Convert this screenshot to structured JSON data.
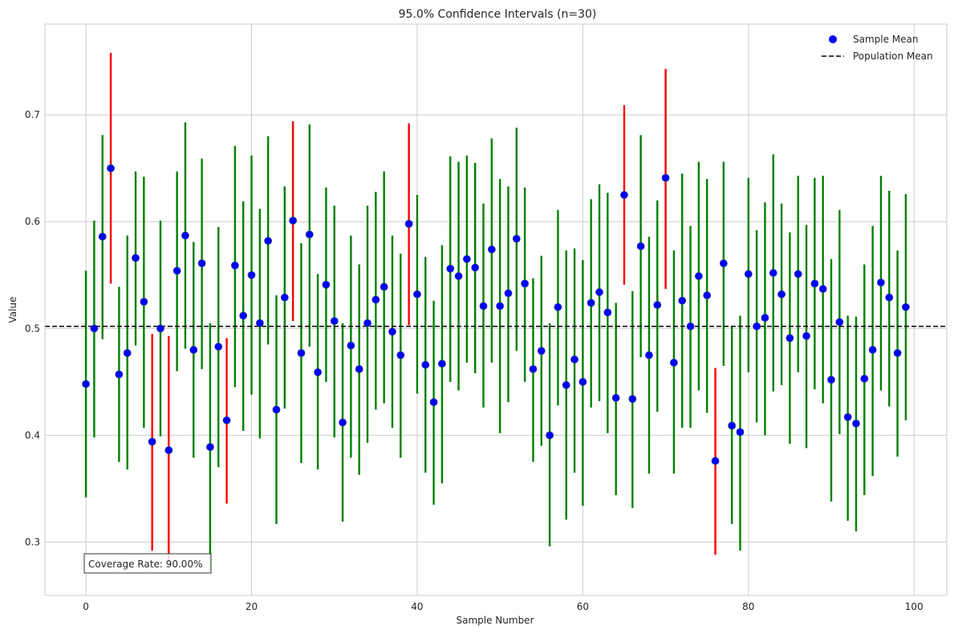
{
  "chart_data": {
    "type": "scatter",
    "title": "95.0% Confidence Intervals (n=30)",
    "xlabel": "Sample Number",
    "ylabel": "Value",
    "xlim": [
      -4.95,
      103.95
    ],
    "ylim": [
      0.25,
      0.785
    ],
    "xticks": [
      0,
      20,
      40,
      60,
      80,
      100
    ],
    "yticks": [
      0.3,
      0.4,
      0.5,
      0.6,
      0.7
    ],
    "grid": true,
    "legend": {
      "placement": "top-right",
      "entries": [
        {
          "label": "Sample Mean",
          "kind": "marker",
          "color": "#0000ff"
        },
        {
          "label": "Population Mean",
          "kind": "dashed-line",
          "color": "#000000"
        }
      ]
    },
    "population_mean": 0.502,
    "annotation": "Coverage Rate: 90.00%",
    "colors": {
      "covered": "#008000",
      "missed": "#ff0000",
      "marker": "#0000ff",
      "marker_edge": "#1f3f8f"
    },
    "means": [
      0.448,
      0.5,
      0.586,
      0.65,
      0.457,
      0.477,
      0.566,
      0.525,
      0.394,
      0.5,
      0.386,
      0.554,
      0.587,
      0.48,
      0.561,
      0.389,
      0.483,
      0.414,
      0.559,
      0.512,
      0.55,
      0.505,
      0.582,
      0.424,
      0.529,
      0.601,
      0.477,
      0.588,
      0.459,
      0.541,
      0.507,
      0.412,
      0.484,
      0.462,
      0.505,
      0.527,
      0.539,
      0.497,
      0.475,
      0.598,
      0.532,
      0.466,
      0.431,
      0.467,
      0.556,
      0.549,
      0.565,
      0.557,
      0.521,
      0.574,
      0.521,
      0.533,
      0.584,
      0.542,
      0.462,
      0.479,
      0.4,
      0.52,
      0.447,
      0.471,
      0.45,
      0.524,
      0.534,
      0.515,
      0.435,
      0.625,
      0.434,
      0.577,
      0.475,
      0.522,
      0.641,
      0.468,
      0.526,
      0.502,
      0.549,
      0.531,
      0.376,
      0.561,
      0.409,
      0.403,
      0.551,
      0.502,
      0.51,
      0.552,
      0.532,
      0.491,
      0.551,
      0.493,
      0.542,
      0.537,
      0.452,
      0.506,
      0.417,
      0.411,
      0.453,
      0.48,
      0.543,
      0.529,
      0.477,
      0.52
    ],
    "lower": [
      0.342,
      0.398,
      0.49,
      0.542,
      0.375,
      0.368,
      0.484,
      0.407,
      0.292,
      0.399,
      0.28,
      0.46,
      0.481,
      0.379,
      0.462,
      0.272,
      0.37,
      0.336,
      0.445,
      0.404,
      0.438,
      0.397,
      0.485,
      0.317,
      0.425,
      0.507,
      0.374,
      0.483,
      0.368,
      0.45,
      0.398,
      0.319,
      0.379,
      0.363,
      0.393,
      0.424,
      0.43,
      0.407,
      0.379,
      0.503,
      0.439,
      0.365,
      0.335,
      0.355,
      0.45,
      0.442,
      0.468,
      0.458,
      0.426,
      0.468,
      0.402,
      0.431,
      0.479,
      0.45,
      0.375,
      0.39,
      0.296,
      0.428,
      0.321,
      0.365,
      0.334,
      0.426,
      0.432,
      0.402,
      0.344,
      0.541,
      0.332,
      0.473,
      0.364,
      0.422,
      0.537,
      0.364,
      0.407,
      0.407,
      0.442,
      0.421,
      0.288,
      0.465,
      0.317,
      0.292,
      0.459,
      0.412,
      0.4,
      0.441,
      0.447,
      0.392,
      0.459,
      0.388,
      0.443,
      0.43,
      0.338,
      0.401,
      0.32,
      0.31,
      0.344,
      0.362,
      0.442,
      0.427,
      0.38,
      0.414
    ],
    "upper": [
      0.554,
      0.601,
      0.681,
      0.758,
      0.539,
      0.587,
      0.647,
      0.642,
      0.495,
      0.601,
      0.493,
      0.647,
      0.693,
      0.581,
      0.659,
      0.505,
      0.595,
      0.491,
      0.671,
      0.619,
      0.662,
      0.612,
      0.68,
      0.531,
      0.633,
      0.694,
      0.58,
      0.691,
      0.551,
      0.632,
      0.615,
      0.505,
      0.587,
      0.56,
      0.615,
      0.628,
      0.647,
      0.587,
      0.57,
      0.692,
      0.625,
      0.567,
      0.526,
      0.578,
      0.661,
      0.656,
      0.662,
      0.655,
      0.617,
      0.678,
      0.64,
      0.633,
      0.688,
      0.632,
      0.547,
      0.568,
      0.505,
      0.611,
      0.573,
      0.575,
      0.564,
      0.621,
      0.635,
      0.627,
      0.524,
      0.709,
      0.535,
      0.681,
      0.586,
      0.62,
      0.743,
      0.573,
      0.645,
      0.596,
      0.656,
      0.64,
      0.463,
      0.656,
      0.502,
      0.512,
      0.641,
      0.592,
      0.618,
      0.663,
      0.617,
      0.59,
      0.643,
      0.597,
      0.641,
      0.643,
      0.565,
      0.611,
      0.512,
      0.511,
      0.56,
      0.596,
      0.643,
      0.629,
      0.573,
      0.626
    ]
  }
}
